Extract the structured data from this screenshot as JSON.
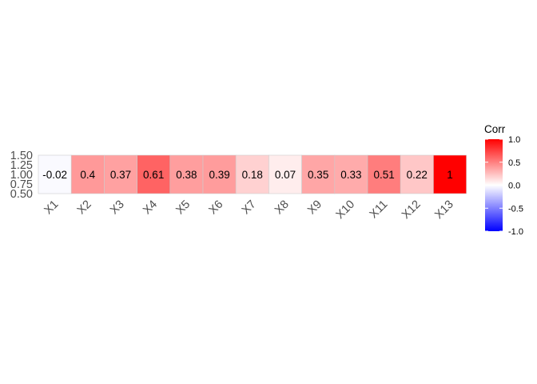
{
  "chart_data": {
    "type": "heatmap",
    "title": "",
    "xlabel": "",
    "ylabel": "",
    "categories": [
      "X1",
      "X2",
      "X3",
      "X4",
      "X5",
      "X6",
      "X7",
      "X8",
      "X9",
      "X10",
      "X11",
      "X12",
      "X13"
    ],
    "values": [
      -0.02,
      0.4,
      0.37,
      0.61,
      0.38,
      0.39,
      0.18,
      0.07,
      0.35,
      0.33,
      0.51,
      0.22,
      1
    ],
    "value_labels": [
      "-0.02",
      "0.4",
      "0.37",
      "0.61",
      "0.38",
      "0.39",
      "0.18",
      "0.07",
      "0.35",
      "0.33",
      "0.51",
      "0.22",
      "1"
    ],
    "y_ticks": [
      "0.50",
      "0.75",
      "1.00",
      "1.25",
      "1.50"
    ],
    "y_tick_values": [
      0.5,
      0.75,
      1.0,
      1.25,
      1.5
    ],
    "ylim": [
      0.5,
      1.5
    ],
    "grid": false,
    "legend": {
      "title": "Corr",
      "placement": "right",
      "limits": [
        -1,
        1
      ],
      "ticks": [
        "1.0",
        "0.5",
        "0.0",
        "-0.5",
        "-1.0"
      ],
      "tick_values": [
        1,
        0.5,
        0,
        -0.5,
        -1
      ]
    },
    "colors": {
      "low": "#0000ff",
      "mid": "#ffffff",
      "high": "#ff0000",
      "border": "#cccccc"
    }
  }
}
